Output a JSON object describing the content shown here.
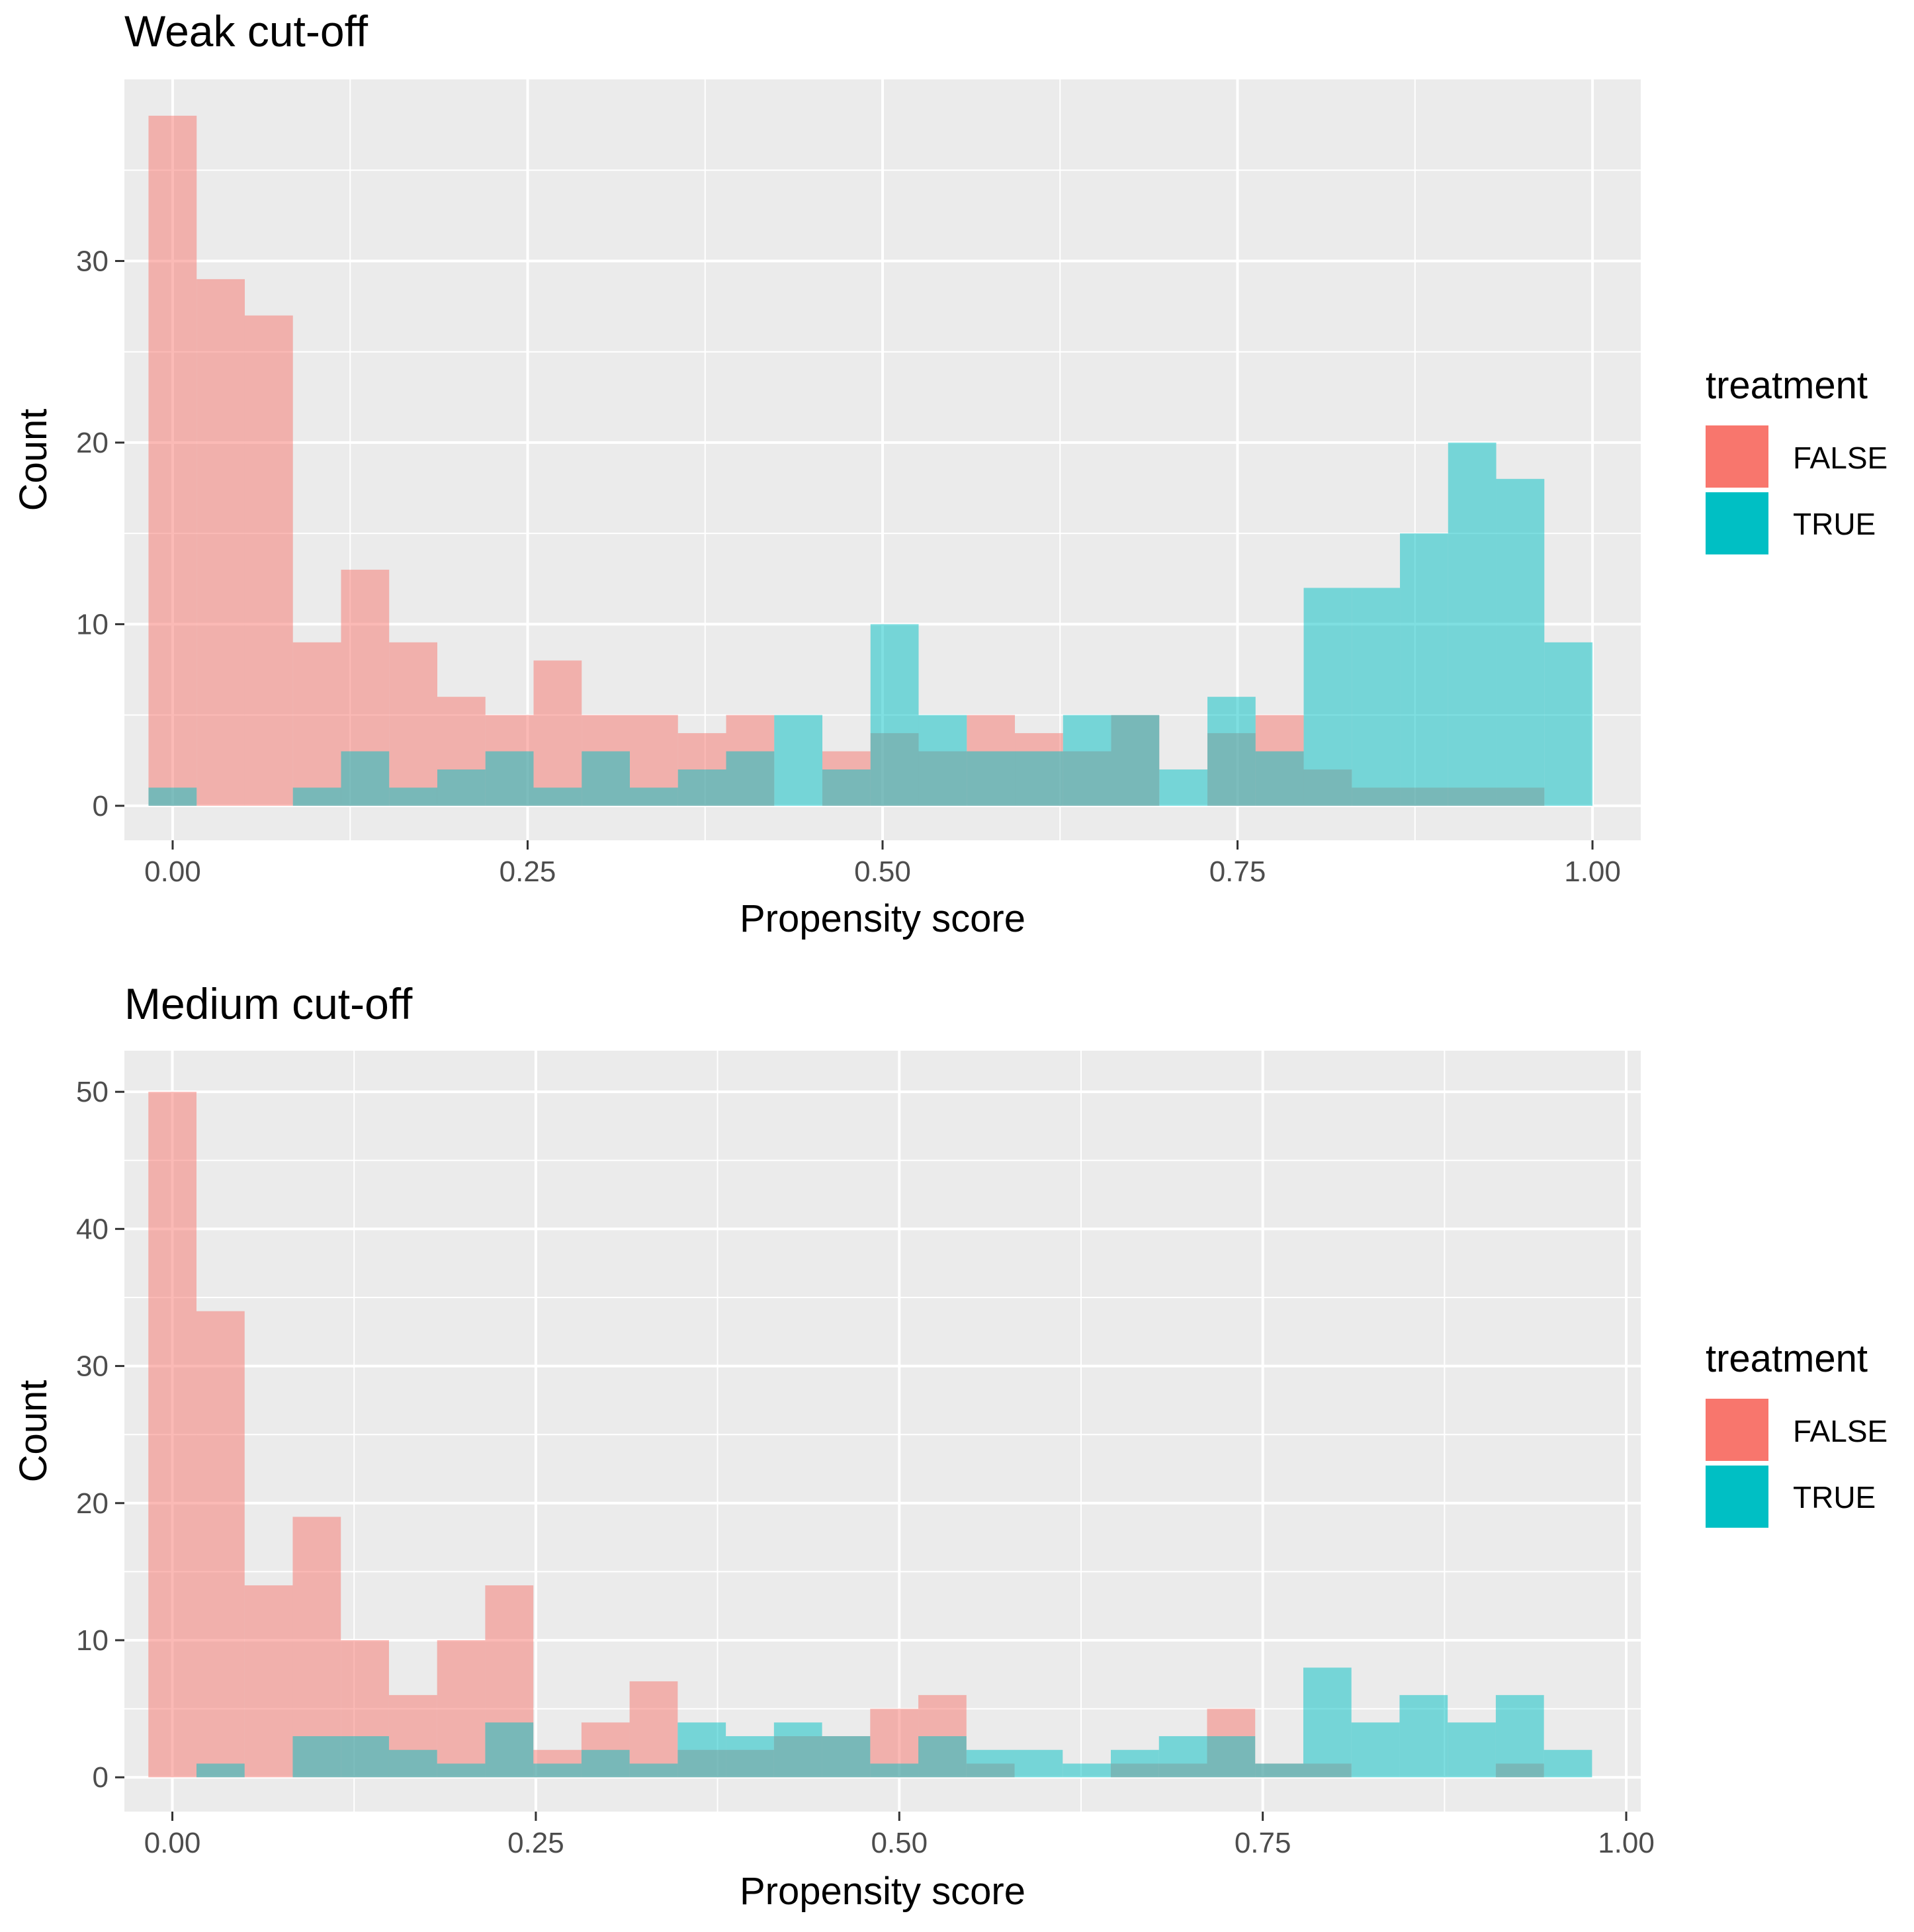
{
  "colors": {
    "false_fill": "#F8766D",
    "true_fill": "#00BFC4",
    "panel_bg": "#EBEBEB",
    "grid": "#FFFFFF",
    "tick": "#333333"
  },
  "legend": {
    "title": "treatment",
    "items": [
      "FALSE",
      "TRUE"
    ]
  },
  "chart_data": [
    {
      "type": "bar",
      "title": "Weak cut-off",
      "xlabel": "Propensity score",
      "ylabel": "Count",
      "xlim": [
        -0.034,
        1.034
      ],
      "ylim": [
        -1.9,
        40
      ],
      "x_ticks": [
        0,
        0.25,
        0.5,
        0.75,
        1
      ],
      "x_tick_labels": [
        "0.00",
        "0.25",
        "0.50",
        "0.75",
        "1.00"
      ],
      "y_ticks": [
        0,
        10,
        20,
        30
      ],
      "y_tick_labels": [
        "0",
        "10",
        "20",
        "30"
      ],
      "bin_start": -0.017,
      "bin_width": 0.0339,
      "series": [
        {
          "name": "FALSE",
          "values": [
            38,
            29,
            27,
            9,
            13,
            9,
            6,
            5,
            8,
            5,
            5,
            4,
            5,
            0,
            3,
            4,
            3,
            5,
            4,
            3,
            5,
            0,
            4,
            5,
            2,
            1,
            1,
            1,
            1,
            0
          ]
        },
        {
          "name": "TRUE",
          "values": [
            1,
            0,
            0,
            1,
            3,
            1,
            2,
            3,
            1,
            3,
            1,
            2,
            3,
            5,
            2,
            10,
            5,
            3,
            3,
            5,
            5,
            2,
            6,
            3,
            12,
            12,
            15,
            20,
            18,
            9
          ]
        }
      ]
    },
    {
      "type": "bar",
      "title": "Medium cut-off",
      "xlabel": "Propensity score",
      "ylabel": "Count",
      "xlim": [
        -0.033,
        1.01
      ],
      "ylim": [
        -2.5,
        53
      ],
      "x_ticks": [
        0,
        0.25,
        0.5,
        0.75,
        1
      ],
      "x_tick_labels": [
        "0.00",
        "0.25",
        "0.50",
        "0.75",
        "1.00"
      ],
      "y_ticks": [
        0,
        10,
        20,
        30,
        40,
        50
      ],
      "y_tick_labels": [
        "0",
        "10",
        "20",
        "30",
        "40",
        "50"
      ],
      "bin_start": -0.0165,
      "bin_width": 0.0331,
      "series": [
        {
          "name": "FALSE",
          "values": [
            50,
            34,
            14,
            19,
            10,
            6,
            10,
            14,
            2,
            4,
            7,
            2,
            2,
            3,
            3,
            5,
            6,
            1,
            0,
            0,
            1,
            1,
            5,
            1,
            1,
            0,
            0,
            0,
            1,
            0
          ]
        },
        {
          "name": "TRUE",
          "values": [
            0,
            1,
            0,
            3,
            3,
            2,
            1,
            4,
            1,
            2,
            1,
            4,
            3,
            4,
            3,
            1,
            3,
            2,
            2,
            1,
            2,
            3,
            3,
            1,
            8,
            4,
            6,
            4,
            6,
            2
          ]
        }
      ]
    }
  ]
}
